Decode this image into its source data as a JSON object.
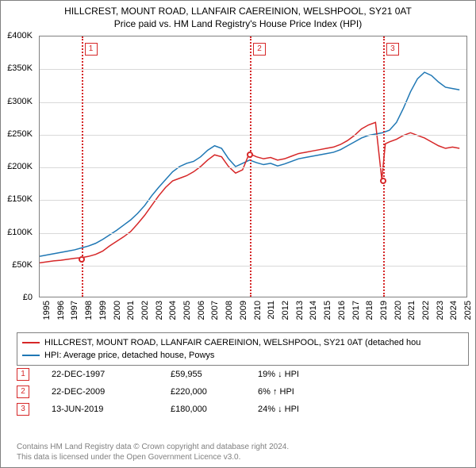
{
  "title1": "HILLCREST, MOUNT ROAD, LLANFAIR CAEREINION, WELSHPOOL, SY21 0AT",
  "title2": "Price paid vs. HM Land Registry's House Price Index (HPI)",
  "chart": {
    "type": "line",
    "ylim": [
      0,
      400000
    ],
    "yticks": [
      0,
      50000,
      100000,
      150000,
      200000,
      250000,
      300000,
      350000,
      400000
    ],
    "ytick_labels": [
      "£0",
      "£50K",
      "£100K",
      "£150K",
      "£200K",
      "£250K",
      "£300K",
      "£350K",
      "£400K"
    ],
    "xlim": [
      1995,
      2025.5
    ],
    "xticks": [
      1995,
      1996,
      1997,
      1998,
      1999,
      2000,
      2001,
      2002,
      2003,
      2004,
      2005,
      2006,
      2007,
      2008,
      2009,
      2010,
      2011,
      2012,
      2013,
      2014,
      2015,
      2016,
      2017,
      2018,
      2019,
      2020,
      2021,
      2022,
      2023,
      2024,
      2025
    ],
    "grid_color": "#d9d9d9",
    "background_color": "#ffffff",
    "axis_color": "#808080",
    "series": {
      "property": {
        "label": "HILLCREST, MOUNT ROAD, LLANFAIR CAEREINION, WELSHPOOL, SY21 0AT (detached hou",
        "color": "#d62728",
        "line_width": 1.5,
        "points": [
          [
            1995,
            52000
          ],
          [
            1995.5,
            53500
          ],
          [
            1996,
            55000
          ],
          [
            1996.5,
            56000
          ],
          [
            1997,
            57500
          ],
          [
            1997.5,
            59000
          ],
          [
            1997.97,
            59955
          ],
          [
            1998.5,
            62000
          ],
          [
            1999,
            65000
          ],
          [
            1999.5,
            70000
          ],
          [
            2000,
            78000
          ],
          [
            2000.5,
            85000
          ],
          [
            2001,
            92000
          ],
          [
            2001.5,
            100000
          ],
          [
            2002,
            112000
          ],
          [
            2002.5,
            125000
          ],
          [
            2003,
            140000
          ],
          [
            2003.5,
            155000
          ],
          [
            2004,
            168000
          ],
          [
            2004.5,
            178000
          ],
          [
            2005,
            182000
          ],
          [
            2005.5,
            186000
          ],
          [
            2006,
            192000
          ],
          [
            2006.5,
            200000
          ],
          [
            2007,
            210000
          ],
          [
            2007.5,
            218000
          ],
          [
            2008,
            215000
          ],
          [
            2008.5,
            200000
          ],
          [
            2009,
            190000
          ],
          [
            2009.5,
            195000
          ],
          [
            2009.97,
            220000
          ],
          [
            2010.5,
            215000
          ],
          [
            2011,
            212000
          ],
          [
            2011.5,
            214000
          ],
          [
            2012,
            210000
          ],
          [
            2012.5,
            212000
          ],
          [
            2013,
            216000
          ],
          [
            2013.5,
            220000
          ],
          [
            2014,
            222000
          ],
          [
            2014.5,
            224000
          ],
          [
            2015,
            226000
          ],
          [
            2015.5,
            228000
          ],
          [
            2016,
            230000
          ],
          [
            2016.5,
            234000
          ],
          [
            2017,
            240000
          ],
          [
            2017.5,
            248000
          ],
          [
            2018,
            258000
          ],
          [
            2018.5,
            264000
          ],
          [
            2019,
            268000
          ],
          [
            2019.45,
            180000
          ],
          [
            2019.7,
            235000
          ],
          [
            2020,
            238000
          ],
          [
            2020.5,
            242000
          ],
          [
            2021,
            248000
          ],
          [
            2021.5,
            252000
          ],
          [
            2022,
            248000
          ],
          [
            2022.5,
            244000
          ],
          [
            2023,
            238000
          ],
          [
            2023.5,
            232000
          ],
          [
            2024,
            228000
          ],
          [
            2024.5,
            230000
          ],
          [
            2025,
            228000
          ]
        ]
      },
      "hpi": {
        "label": "HPI: Average price, detached house, Powys",
        "color": "#1f77b4",
        "line_width": 1.5,
        "points": [
          [
            1995,
            62000
          ],
          [
            1995.5,
            64000
          ],
          [
            1996,
            66000
          ],
          [
            1996.5,
            68000
          ],
          [
            1997,
            70000
          ],
          [
            1997.5,
            72000
          ],
          [
            1998,
            75000
          ],
          [
            1998.5,
            78000
          ],
          [
            1999,
            82000
          ],
          [
            1999.5,
            88000
          ],
          [
            2000,
            95000
          ],
          [
            2000.5,
            102000
          ],
          [
            2001,
            110000
          ],
          [
            2001.5,
            118000
          ],
          [
            2002,
            128000
          ],
          [
            2002.5,
            140000
          ],
          [
            2003,
            155000
          ],
          [
            2003.5,
            168000
          ],
          [
            2004,
            180000
          ],
          [
            2004.5,
            192000
          ],
          [
            2005,
            200000
          ],
          [
            2005.5,
            205000
          ],
          [
            2006,
            208000
          ],
          [
            2006.5,
            215000
          ],
          [
            2007,
            225000
          ],
          [
            2007.5,
            232000
          ],
          [
            2008,
            228000
          ],
          [
            2008.5,
            212000
          ],
          [
            2009,
            200000
          ],
          [
            2009.5,
            205000
          ],
          [
            2010,
            210000
          ],
          [
            2010.5,
            206000
          ],
          [
            2011,
            203000
          ],
          [
            2011.5,
            205000
          ],
          [
            2012,
            201000
          ],
          [
            2012.5,
            204000
          ],
          [
            2013,
            208000
          ],
          [
            2013.5,
            212000
          ],
          [
            2014,
            214000
          ],
          [
            2014.5,
            216000
          ],
          [
            2015,
            218000
          ],
          [
            2015.5,
            220000
          ],
          [
            2016,
            222000
          ],
          [
            2016.5,
            226000
          ],
          [
            2017,
            232000
          ],
          [
            2017.5,
            238000
          ],
          [
            2018,
            244000
          ],
          [
            2018.5,
            248000
          ],
          [
            2019,
            250000
          ],
          [
            2019.5,
            252000
          ],
          [
            2020,
            256000
          ],
          [
            2020.5,
            268000
          ],
          [
            2021,
            290000
          ],
          [
            2021.5,
            315000
          ],
          [
            2022,
            335000
          ],
          [
            2022.5,
            345000
          ],
          [
            2023,
            340000
          ],
          [
            2023.5,
            330000
          ],
          [
            2024,
            322000
          ],
          [
            2024.5,
            320000
          ],
          [
            2025,
            318000
          ]
        ]
      }
    },
    "sale_markers": [
      {
        "n": "1",
        "year": 1997.97,
        "color": "#d62728"
      },
      {
        "n": "2",
        "year": 2009.97,
        "color": "#d62728"
      },
      {
        "n": "3",
        "year": 2019.45,
        "color": "#d62728"
      }
    ],
    "sale_dots": [
      {
        "year": 1997.97,
        "price": 59955,
        "color": "#d62728"
      },
      {
        "year": 2009.97,
        "price": 220000,
        "color": "#d62728"
      },
      {
        "year": 2019.45,
        "price": 180000,
        "color": "#d62728"
      }
    ]
  },
  "sales": [
    {
      "n": "1",
      "date": "22-DEC-1997",
      "price": "£59,955",
      "delta": "19% ↓ HPI",
      "color": "#d62728"
    },
    {
      "n": "2",
      "date": "22-DEC-2009",
      "price": "£220,000",
      "delta": "6% ↑ HPI",
      "color": "#d62728"
    },
    {
      "n": "3",
      "date": "13-JUN-2019",
      "price": "£180,000",
      "delta": "24% ↓ HPI",
      "color": "#d62728"
    }
  ],
  "footer1": "Contains HM Land Registry data © Crown copyright and database right 2024.",
  "footer2": "This data is licensed under the Open Government Licence v3.0."
}
